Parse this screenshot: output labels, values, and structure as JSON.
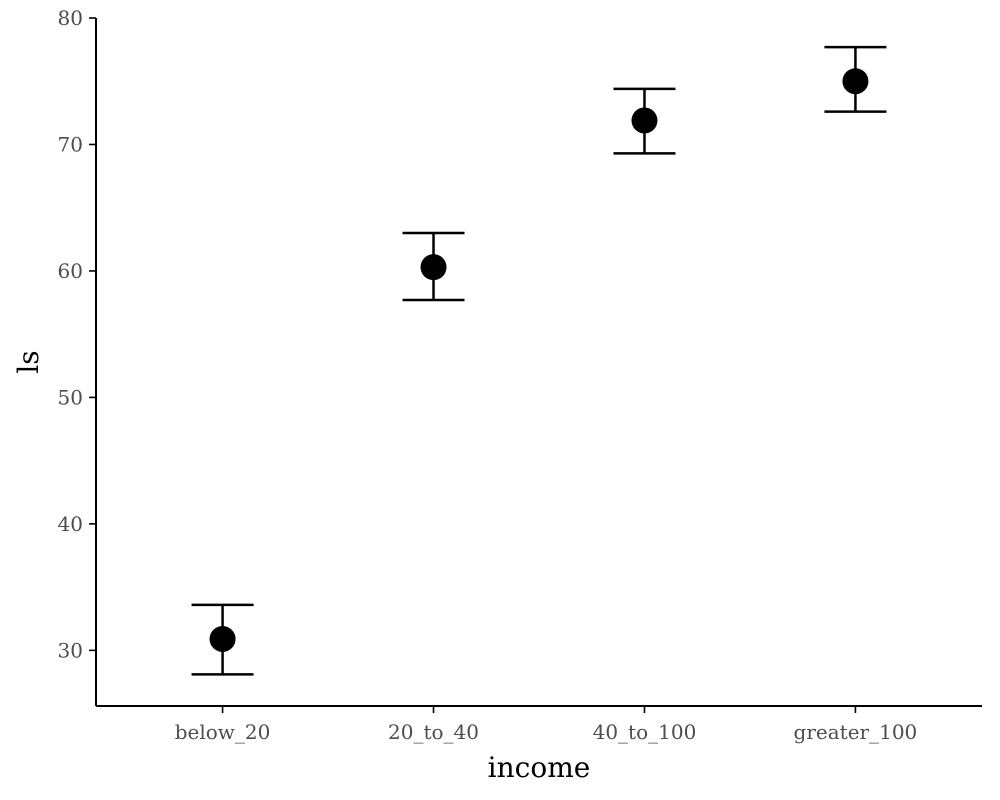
{
  "chart_data": {
    "type": "scatter",
    "title": "",
    "xlabel": "income",
    "ylabel": "ls",
    "categories": [
      "below_20",
      "20_to_40",
      "40_to_100",
      "greater_100"
    ],
    "values": [
      30.9,
      60.3,
      71.9,
      75.0
    ],
    "error_lower": [
      28.1,
      57.7,
      69.3,
      72.6
    ],
    "error_upper": [
      33.6,
      63.0,
      74.4,
      77.7
    ],
    "yticks": [
      30,
      40,
      50,
      60,
      70,
      80
    ],
    "ylim": [
      25.6,
      80.0
    ],
    "grid": false,
    "legend": "none",
    "colors": {
      "point": "#000000",
      "errorbar": "#000000",
      "axis": "#000000",
      "tick_label": "#4d4d4d"
    }
  }
}
